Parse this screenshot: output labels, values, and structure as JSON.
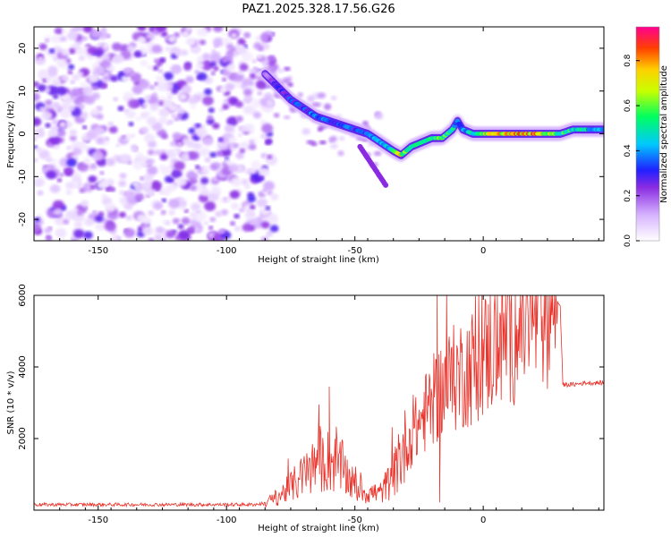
{
  "title": "PAZ1.2025.328.17.56.G26",
  "chart_data": [
    {
      "type": "heatmap",
      "xlabel": "Height of straight line (km)",
      "ylabel": "Frequency (Hz)",
      "xlim": [
        -175,
        47
      ],
      "ylim": [
        -25,
        25
      ],
      "xticks": [
        -150,
        -100,
        -50,
        0
      ],
      "yticks": [
        -20,
        -10,
        0,
        10,
        20
      ],
      "colorbar": {
        "label": "Normalized spectral amplitude",
        "range": [
          0,
          0.95
        ],
        "ticks": [
          0.0,
          0.2,
          0.4,
          0.6,
          0.8
        ]
      },
      "ridge": {
        "x": [
          -85,
          -80,
          -75,
          -70,
          -65,
          -60,
          -55,
          -50,
          -45,
          -40,
          -35,
          -32,
          -28,
          -24,
          -20,
          -16,
          -12,
          -10,
          -8,
          -4,
          0,
          5,
          10,
          15,
          20,
          25,
          30,
          35,
          40,
          47
        ],
        "y": [
          14,
          11,
          8,
          6,
          4,
          3,
          2,
          1,
          0,
          -2,
          -4,
          -5,
          -3,
          -2,
          -1,
          -1,
          1,
          3,
          1,
          0,
          0,
          0,
          0,
          0,
          0,
          0,
          0,
          1,
          1,
          1
        ],
        "amplitude": [
          0.18,
          0.3,
          0.35,
          0.35,
          0.4,
          0.35,
          0.4,
          0.35,
          0.4,
          0.45,
          0.55,
          0.75,
          0.55,
          0.5,
          0.6,
          0.7,
          0.5,
          0.4,
          0.45,
          0.5,
          0.7,
          0.75,
          0.85,
          0.8,
          0.85,
          0.7,
          0.6,
          0.55,
          0.5,
          0.45
        ]
      },
      "noise_region_x": [
        -175,
        -85
      ],
      "noise_amplitude_range": [
        0.03,
        0.3
      ]
    },
    {
      "type": "line",
      "xlabel": "Height of straight line (km)",
      "ylabel": "SNR (10 * v/v)",
      "xlim": [
        -175,
        47
      ],
      "ylim": [
        0,
        6000
      ],
      "xticks": [
        -150,
        -100,
        -50,
        0
      ],
      "yticks": [
        2000,
        4000,
        6000
      ],
      "line_color": "#e8322a",
      "series": [
        {
          "name": "SNR",
          "x": [
            -175,
            -150,
            -125,
            -100,
            -90,
            -85,
            -80,
            -75,
            -70,
            -65,
            -60,
            -55,
            -50,
            -45,
            -40,
            -35,
            -30,
            -25,
            -20,
            -15,
            -10,
            -5,
            0,
            5,
            10,
            15,
            20,
            25,
            29,
            30,
            31,
            35,
            40,
            47
          ],
          "y": [
            150,
            150,
            150,
            150,
            150,
            180,
            350,
            600,
            900,
            1200,
            1300,
            1100,
            600,
            450,
            450,
            900,
            1700,
            2300,
            2900,
            3300,
            3600,
            3800,
            4100,
            4500,
            4700,
            5000,
            5300,
            5600,
            5800,
            5700,
            3500,
            3500,
            3550,
            3550
          ],
          "spikes": [
            {
              "x": -60,
              "y": 3450
            },
            {
              "x": -18,
              "y": 6000
            },
            {
              "x": -17,
              "y": 220
            }
          ]
        }
      ]
    }
  ]
}
